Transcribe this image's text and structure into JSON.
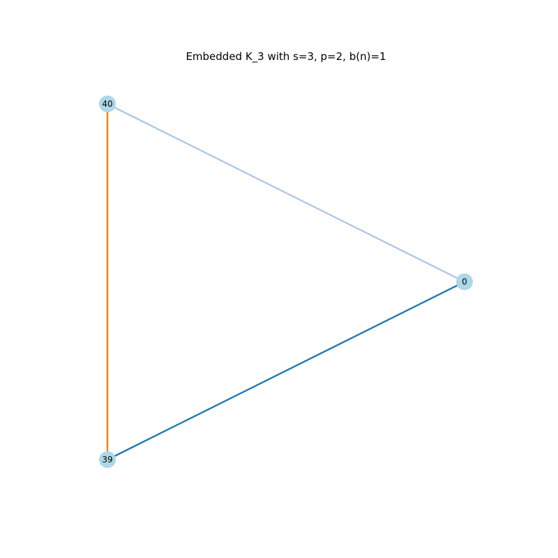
{
  "title": "Embedded K_3 with s=3, p=2, b(n)=1",
  "node_color": "#add8e6",
  "nodes": [
    {
      "id": "40",
      "label": "40"
    },
    {
      "id": "0",
      "label": "0"
    },
    {
      "id": "39",
      "label": "39"
    }
  ],
  "edges": [
    {
      "source": "40",
      "target": "0",
      "color": "#aec7e8"
    },
    {
      "source": "0",
      "target": "39",
      "color": "#1f77b4"
    },
    {
      "source": "39",
      "target": "40",
      "color": "#ff7f0e"
    }
  ]
}
